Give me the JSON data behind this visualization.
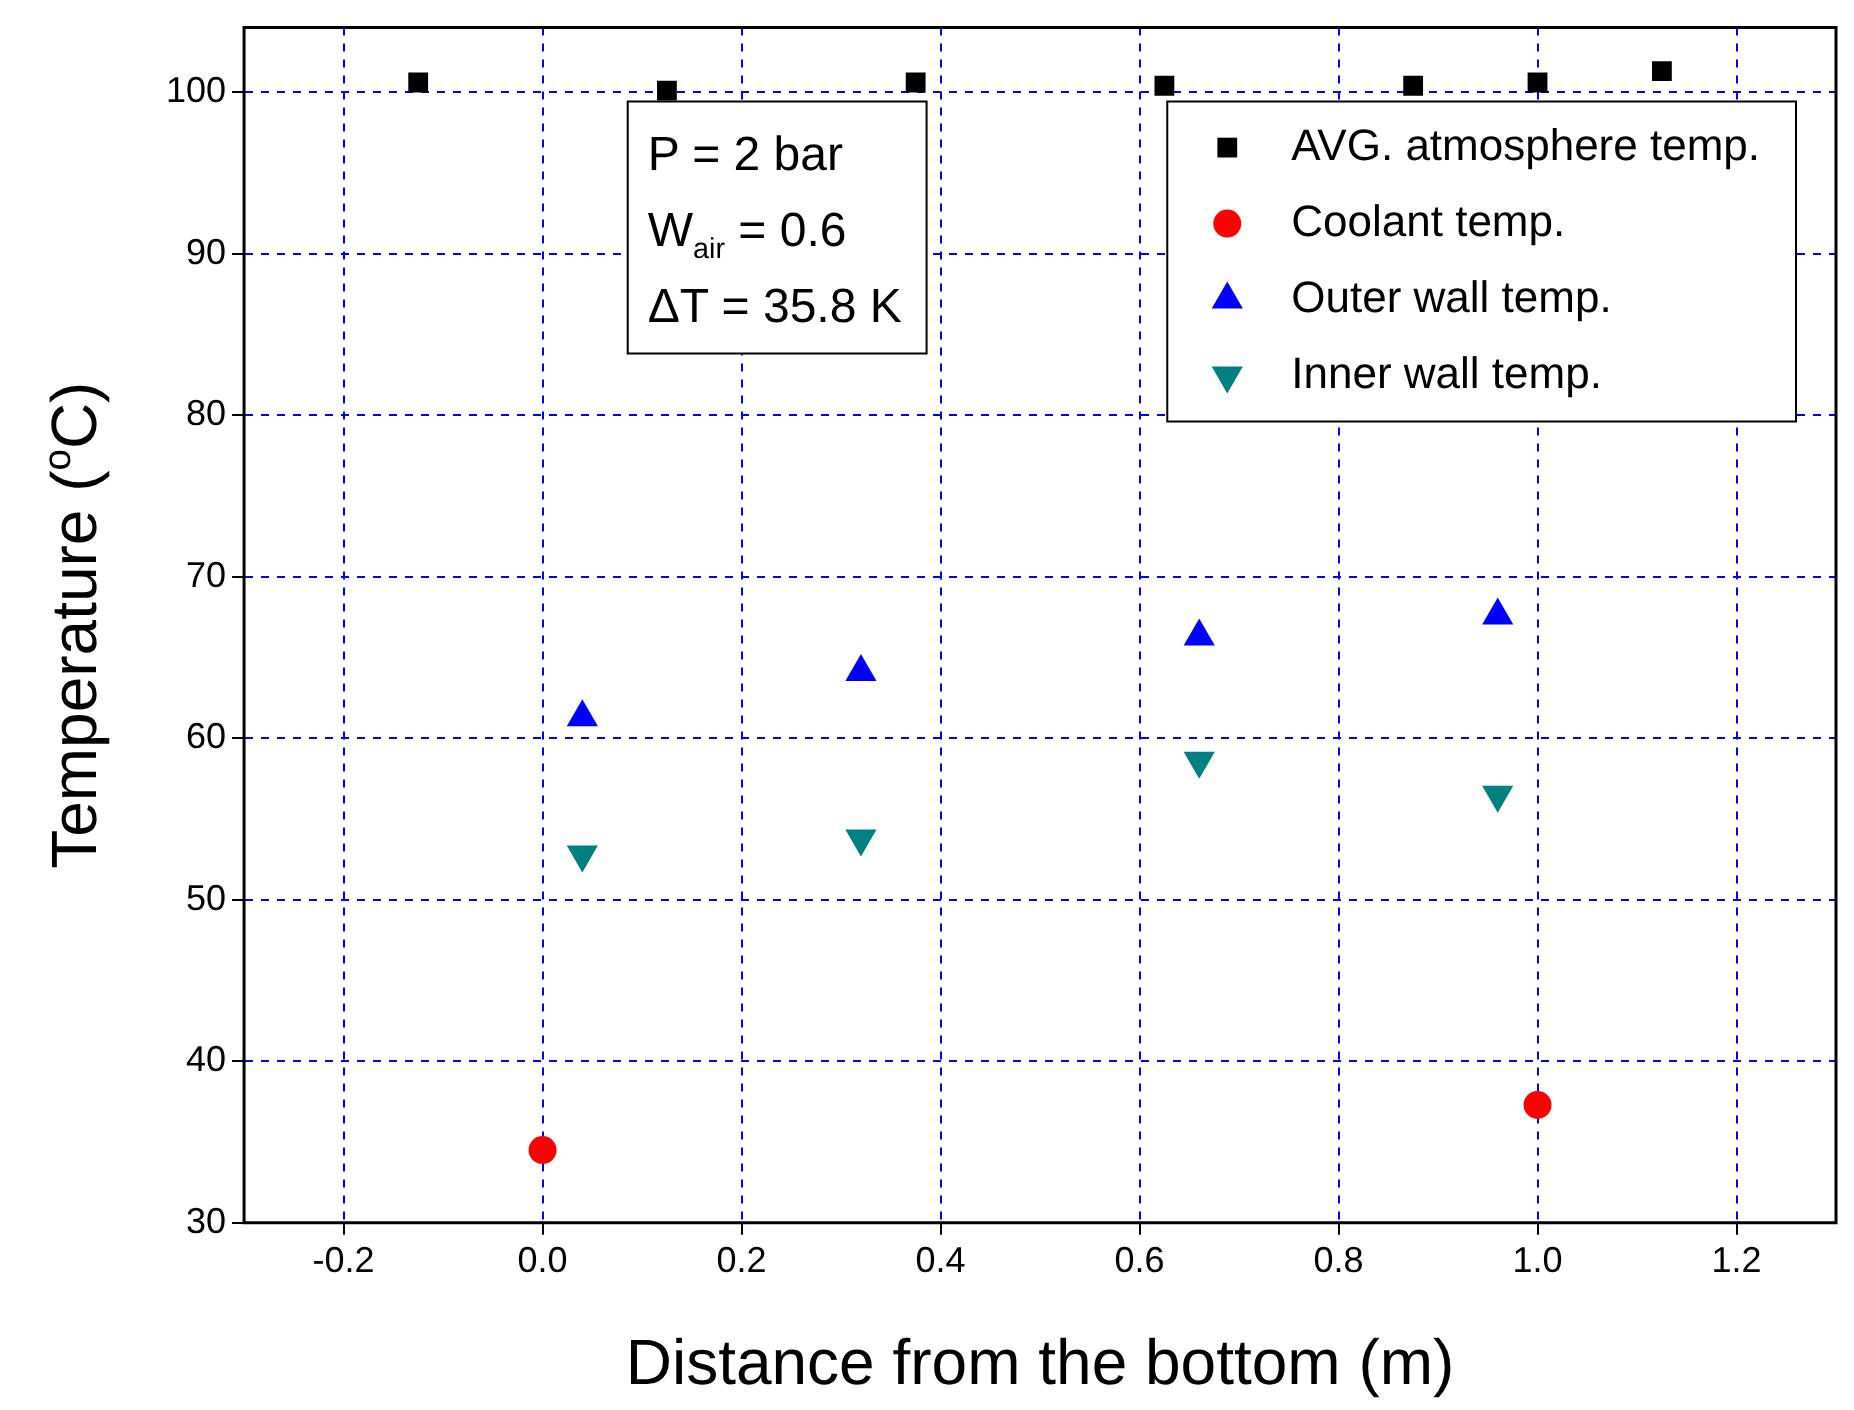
{
  "chart_data": {
    "type": "scatter",
    "xlabel": "Distance from the bottom (m)",
    "ylabel": "Temperature ($^{o}$C)",
    "xlim": [
      -0.3,
      1.3
    ],
    "xticks": [
      -0.2,
      {
        "value": 0,
        "label": "0.0"
      },
      0.2,
      0.4,
      0.6,
      0.8,
      {
        "value": 1,
        "label": "1.0"
      },
      1.2
    ],
    "ylim": [
      30,
      104
    ],
    "yticks": [
      30,
      40,
      50,
      60,
      70,
      80,
      90,
      100
    ],
    "grid": true,
    "legend": "top right",
    "annotations": [
      "P = 2 bar",
      "W$_{air}$ = 0.6",
      "ΔT = 35.8 K"
    ],
    "series": [
      {
        "name": "AVG. atmosphere temp.",
        "color": "#000000",
        "marker": "square",
        "x": [
          -0.125,
          0.125,
          0.375,
          0.625,
          0.875,
          1.0,
          1.125
        ],
        "values": [
          100.6,
          100.1,
          100.6,
          100.4,
          100.4,
          100.6,
          101.3
        ]
      },
      {
        "name": "Coolant temp.",
        "color": "#ff0000",
        "marker": "circle",
        "x": [
          0,
          1.0
        ],
        "values": [
          34.5,
          37.3
        ]
      },
      {
        "name": "Outer wall temp.",
        "color": "#0000ff",
        "marker": "triangle",
        "x": [
          0.04,
          0.32,
          0.66,
          0.96
        ],
        "values": [
          61.3,
          64.1,
          66.3,
          67.6
        ]
      },
      {
        "name": "Inner wall temp.",
        "color": "#008080",
        "marker": "triangle-down",
        "x": [
          0.04,
          0.32,
          0.66,
          0.96
        ],
        "values": [
          52.8,
          53.8,
          58.6,
          56.5
        ]
      }
    ]
  }
}
